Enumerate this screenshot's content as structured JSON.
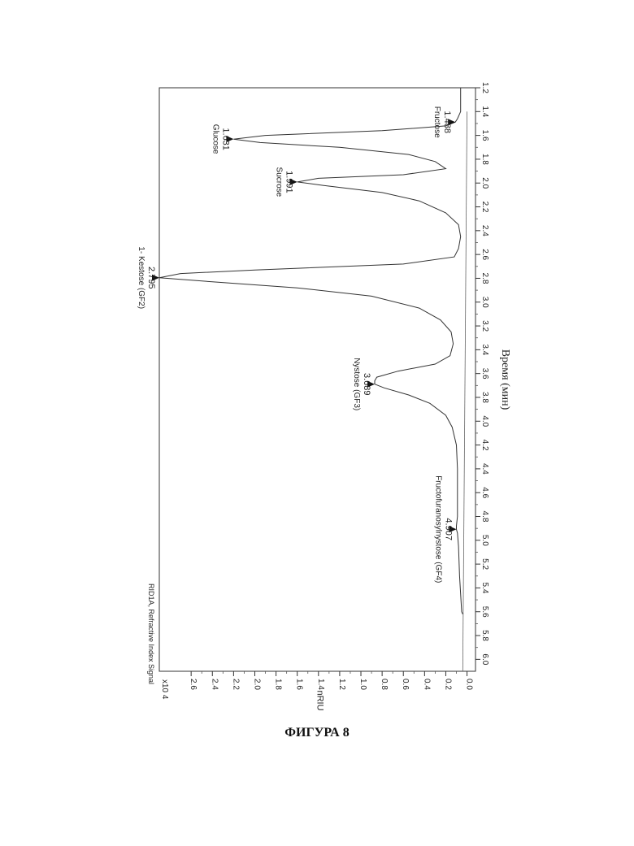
{
  "chart_data": {
    "type": "line",
    "title": "RID1A, Refractive Index Signal",
    "xlabel": "Время (мин)",
    "ylabel": "nRIU",
    "y_multiplier": "x10 4",
    "xlim": [
      1.2,
      6.1
    ],
    "ylim": [
      -0.08,
      2.9
    ],
    "x_ticks": [
      "1.2",
      "1.4",
      "1.6",
      "1.8",
      "2.0",
      "2.2",
      "2.4",
      "2.6",
      "2.8",
      "3.0",
      "3.2",
      "3.4",
      "3.6",
      "3.8",
      "4.0",
      "4.2",
      "4.4",
      "4.6",
      "4.8",
      "5.0",
      "5.2",
      "5.4",
      "5.6",
      "5.8",
      "6.0"
    ],
    "y_ticks": [
      "0.0",
      "0.2",
      "0.4",
      "0.6",
      "0.8",
      "1.0",
      "1.2",
      "1.4",
      "1.6",
      "1.8",
      "2.0",
      "2.2",
      "2.4",
      "2.6"
    ],
    "grid": false,
    "orientation": "rotated 90 degrees clockwise on the page",
    "series": [
      {
        "x": [
          1.2,
          1.4,
          1.46,
          1.488,
          1.52,
          1.56,
          1.6,
          1.631,
          1.66,
          1.7,
          1.76,
          1.82,
          1.88,
          1.93,
          1.96,
          1.991,
          2.02,
          2.08,
          2.15,
          2.25,
          2.35,
          2.45,
          2.55,
          2.62,
          2.68,
          2.73,
          2.76,
          2.795,
          2.83,
          2.88,
          2.95,
          3.05,
          3.15,
          3.25,
          3.35,
          3.45,
          3.52,
          3.58,
          3.63,
          3.66,
          3.689,
          3.72,
          3.78,
          3.85,
          3.95,
          4.05,
          4.2,
          4.4,
          4.6,
          4.8,
          4.88,
          4.907,
          4.94,
          5.05,
          5.3,
          5.6,
          5.62
        ],
        "y": [
          0.06,
          0.06,
          0.09,
          0.11,
          0.2,
          0.8,
          1.9,
          2.2,
          1.95,
          1.2,
          0.55,
          0.3,
          0.2,
          0.6,
          1.4,
          1.6,
          1.35,
          0.8,
          0.45,
          0.2,
          0.08,
          0.06,
          0.08,
          0.12,
          0.6,
          2.0,
          2.7,
          2.9,
          2.4,
          1.6,
          0.9,
          0.45,
          0.25,
          0.15,
          0.13,
          0.16,
          0.3,
          0.65,
          0.85,
          0.87,
          0.87,
          0.78,
          0.55,
          0.35,
          0.2,
          0.14,
          0.1,
          0.09,
          0.09,
          0.09,
          0.1,
          0.1,
          0.09,
          0.08,
          0.07,
          0.05,
          0.04
        ]
      }
    ],
    "peaks": [
      {
        "time": "1.488",
        "name": "Fructose",
        "rt": 1.488,
        "height": 0.11
      },
      {
        "time": "1.631",
        "name": "Glucose",
        "rt": 1.631,
        "height": 2.2
      },
      {
        "time": "1.991",
        "name": "Sucrose",
        "rt": 1.991,
        "height": 1.6
      },
      {
        "time": "2.795",
        "name": "1- Kestose (GF2)",
        "rt": 2.795,
        "height": 2.9
      },
      {
        "time": "3.689",
        "name": "Nystose (GF3)",
        "rt": 3.689,
        "height": 0.87
      },
      {
        "time": "4.907",
        "name": "Fructofuranosylnystose (GF4)",
        "rt": 4.907,
        "height": 0.1
      }
    ]
  },
  "caption": "ФИГУРА 8"
}
